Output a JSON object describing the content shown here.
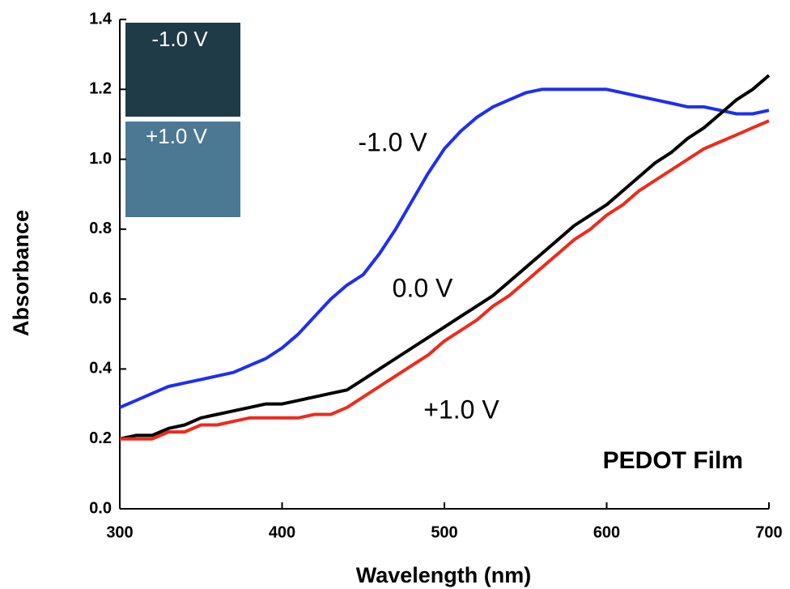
{
  "chart_data": {
    "type": "line",
    "xlabel": "Wavelength (nm)",
    "ylabel": "Absorbance",
    "x": [
      300,
      310,
      320,
      330,
      340,
      350,
      360,
      370,
      380,
      390,
      400,
      410,
      420,
      430,
      440,
      450,
      460,
      470,
      480,
      490,
      500,
      510,
      520,
      530,
      540,
      550,
      560,
      570,
      580,
      590,
      600,
      610,
      620,
      630,
      640,
      650,
      660,
      670,
      680,
      690,
      700
    ],
    "series": [
      {
        "name": "-1.0 V",
        "color": "#1f2ff0",
        "values": [
          0.29,
          0.31,
          0.33,
          0.35,
          0.36,
          0.37,
          0.38,
          0.39,
          0.41,
          0.43,
          0.46,
          0.5,
          0.55,
          0.6,
          0.64,
          0.67,
          0.73,
          0.8,
          0.88,
          0.96,
          1.03,
          1.08,
          1.12,
          1.15,
          1.17,
          1.19,
          1.2,
          1.2,
          1.2,
          1.2,
          1.2,
          1.19,
          1.18,
          1.17,
          1.16,
          1.15,
          1.15,
          1.14,
          1.13,
          1.13,
          1.14
        ]
      },
      {
        "name": "0.0 V",
        "color": "#000000",
        "values": [
          0.2,
          0.21,
          0.21,
          0.23,
          0.24,
          0.26,
          0.27,
          0.28,
          0.29,
          0.3,
          0.3,
          0.31,
          0.32,
          0.33,
          0.34,
          0.37,
          0.4,
          0.43,
          0.46,
          0.49,
          0.52,
          0.55,
          0.58,
          0.61,
          0.65,
          0.69,
          0.73,
          0.77,
          0.81,
          0.84,
          0.87,
          0.91,
          0.95,
          0.99,
          1.02,
          1.06,
          1.09,
          1.13,
          1.17,
          1.2,
          1.24
        ]
      },
      {
        "name": "+1.0 V",
        "color": "#f02a1a",
        "values": [
          0.2,
          0.2,
          0.2,
          0.22,
          0.22,
          0.24,
          0.24,
          0.25,
          0.26,
          0.26,
          0.26,
          0.26,
          0.27,
          0.27,
          0.29,
          0.32,
          0.35,
          0.38,
          0.41,
          0.44,
          0.48,
          0.51,
          0.54,
          0.58,
          0.61,
          0.65,
          0.69,
          0.73,
          0.77,
          0.8,
          0.84,
          0.87,
          0.91,
          0.94,
          0.97,
          1.0,
          1.03,
          1.05,
          1.07,
          1.09,
          1.11
        ]
      }
    ],
    "annotations": [
      "PEDOT Film"
    ],
    "insets": [
      "-1.0 V",
      "+1.0 V"
    ],
    "xlim": [
      300,
      700
    ],
    "xticks": [
      300,
      400,
      500,
      600,
      700
    ],
    "ylim": [
      0,
      1.4
    ],
    "yticks": [
      {
        "value": 0,
        "label": "0.0"
      },
      {
        "value": 0.2,
        "label": "0.2"
      },
      {
        "value": 0.4,
        "label": "0.4"
      },
      {
        "value": 0.6,
        "label": "0.6"
      },
      {
        "value": 0.8,
        "label": "0.8"
      },
      {
        "value": 1.0,
        "label": "1.0"
      },
      {
        "value": 1.2,
        "label": "1.2"
      },
      {
        "value": 1.4,
        "label": "1.4"
      }
    ],
    "grid": false
  }
}
